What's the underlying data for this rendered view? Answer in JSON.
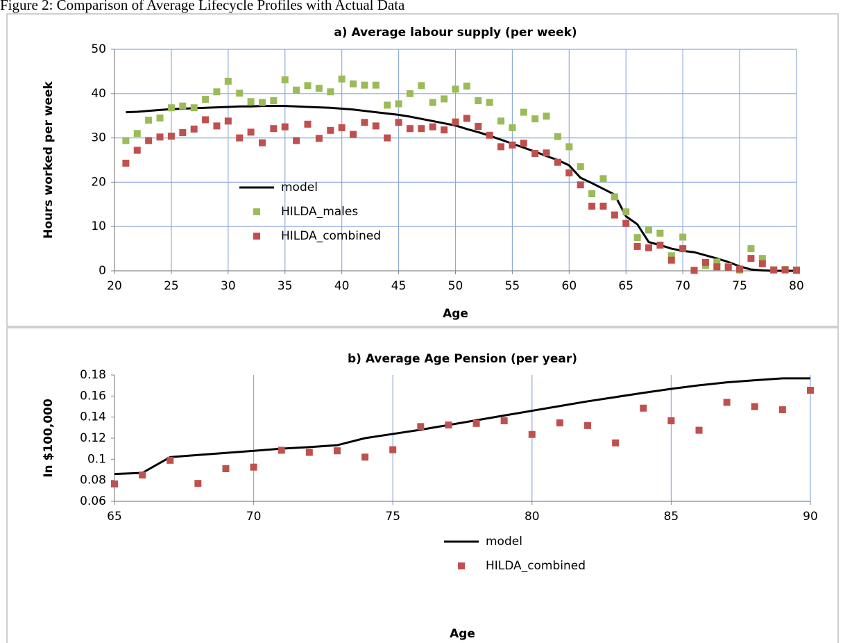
{
  "caption": "Figure 2: Comparison of Average Lifecycle Profiles with Actual Data",
  "chart_data": [
    {
      "type": "scatter",
      "title": "a) Average labour supply (per week)",
      "x_label": "Age",
      "y_label": "Hours worked per week",
      "x": [
        21,
        22,
        23,
        24,
        25,
        26,
        27,
        28,
        29,
        30,
        31,
        32,
        33,
        34,
        35,
        36,
        37,
        38,
        39,
        40,
        41,
        42,
        43,
        44,
        45,
        46,
        47,
        48,
        49,
        50,
        51,
        52,
        53,
        54,
        55,
        56,
        57,
        58,
        59,
        60,
        61,
        62,
        63,
        64,
        65,
        66,
        67,
        68,
        69,
        70,
        71,
        72,
        73,
        74,
        75,
        76,
        77,
        78,
        79,
        80
      ],
      "series": [
        {
          "name": "model",
          "color": "#000000",
          "mark": "line",
          "values": [
            35.8,
            35.9,
            36.1,
            36.3,
            36.5,
            36.6,
            36.7,
            36.8,
            36.9,
            37.0,
            37.1,
            37.1,
            37.2,
            37.2,
            37.2,
            37.1,
            37.0,
            36.9,
            36.8,
            36.6,
            36.4,
            36.1,
            35.8,
            35.5,
            35.2,
            34.8,
            34.3,
            33.8,
            33.3,
            32.8,
            32.0,
            31.3,
            30.5,
            29.6,
            28.7,
            27.8,
            26.9,
            25.9,
            25.0,
            23.8,
            21.0,
            19.8,
            18.5,
            17.2,
            12.3,
            10.5,
            6.5,
            5.8,
            5.0,
            4.5,
            4.2,
            3.5,
            2.8,
            2.0,
            1.0,
            0.3,
            0.1,
            0,
            0,
            0
          ]
        },
        {
          "name": "HILDA_males",
          "color": "#9bbb59",
          "mark": "square",
          "values": [
            29.4,
            31,
            34,
            34.5,
            36.8,
            37.2,
            36.8,
            38.7,
            40.4,
            42.8,
            40.1,
            38.2,
            38,
            38.4,
            43.1,
            40.8,
            41.8,
            41.2,
            40.4,
            43.3,
            42.2,
            41.9,
            41.9,
            37.4,
            37.7,
            40,
            41.8,
            38,
            38.8,
            41,
            41.7,
            38.4,
            38,
            33.8,
            32.3,
            35.8,
            34.3,
            34.9,
            30.3,
            28,
            23.5,
            17.4,
            20.8,
            16.7,
            13.3,
            7.5,
            9.2,
            8.5,
            3.4,
            7.6,
            0.1,
            1.2,
            2,
            1,
            0.2,
            5,
            2.8,
            0.2,
            0.3,
            0.2
          ]
        },
        {
          "name": "HILDA_combined",
          "color": "#c0504d",
          "mark": "square",
          "values": [
            24.3,
            27.2,
            29.4,
            30.2,
            30.4,
            31.2,
            32,
            34.1,
            32.7,
            33.8,
            30,
            31.3,
            28.9,
            32.1,
            32.5,
            29.4,
            33.1,
            29.9,
            31.7,
            32.3,
            30.8,
            33.5,
            32.7,
            30,
            33.5,
            32.1,
            32.1,
            32.5,
            31.8,
            33.6,
            34.4,
            32.6,
            30.6,
            28,
            28.4,
            28.8,
            26.5,
            26.6,
            24.5,
            22.1,
            19.4,
            14.6,
            14.6,
            12.6,
            10.7,
            5.5,
            5.2,
            5.8,
            2.4,
            5,
            0.1,
            1.9,
            0.9,
            0.8,
            0.4,
            2.8,
            1.6,
            0.2,
            0.2,
            0.1
          ]
        }
      ],
      "xlim": [
        20,
        80
      ],
      "xticks": [
        20,
        25,
        30,
        35,
        40,
        45,
        50,
        55,
        60,
        65,
        70,
        75,
        80
      ],
      "ylim": [
        0,
        50
      ],
      "yticks": [
        0,
        10,
        20,
        30,
        40,
        50
      ],
      "grid": "both",
      "legend": "center-left"
    },
    {
      "type": "scatter",
      "title": "b) Average Age Pension (per year)",
      "x_label": "Age",
      "y_label": "In $100,000",
      "x": [
        65,
        66,
        67,
        68,
        69,
        70,
        71,
        72,
        73,
        74,
        75,
        76,
        77,
        78,
        79,
        80,
        81,
        82,
        83,
        84,
        85,
        86,
        87,
        88,
        89,
        90
      ],
      "series": [
        {
          "name": "model",
          "color": "#000000",
          "mark": "line",
          "values": [
            0.086,
            0.087,
            0.102,
            0.104,
            0.106,
            0.108,
            0.11,
            0.1115,
            0.1133,
            0.12,
            0.124,
            0.128,
            0.1325,
            0.137,
            0.1415,
            0.146,
            0.1505,
            0.155,
            0.159,
            0.163,
            0.1668,
            0.1702,
            0.173,
            0.175,
            0.1768,
            0.1768
          ]
        },
        {
          "name": "HILDA_combined",
          "color": "#c0504d",
          "mark": "square",
          "values": [
            0.0765,
            0.085,
            0.099,
            0.077,
            0.091,
            0.0925,
            0.1085,
            0.1065,
            0.108,
            0.102,
            0.109,
            0.131,
            0.1325,
            0.134,
            0.1365,
            0.1235,
            0.1345,
            0.132,
            0.1155,
            0.1485,
            0.1365,
            0.1275,
            0.154,
            0.15,
            0.147,
            0.1655
          ]
        }
      ],
      "xlim": [
        65,
        90
      ],
      "xticks": [
        65,
        70,
        75,
        80,
        85,
        90
      ],
      "ylim": [
        0.06,
        0.18
      ],
      "yticks": [
        0.06,
        0.08,
        0.1,
        0.12,
        0.14,
        0.16,
        0.18
      ],
      "grid": "x",
      "legend": "center"
    }
  ]
}
